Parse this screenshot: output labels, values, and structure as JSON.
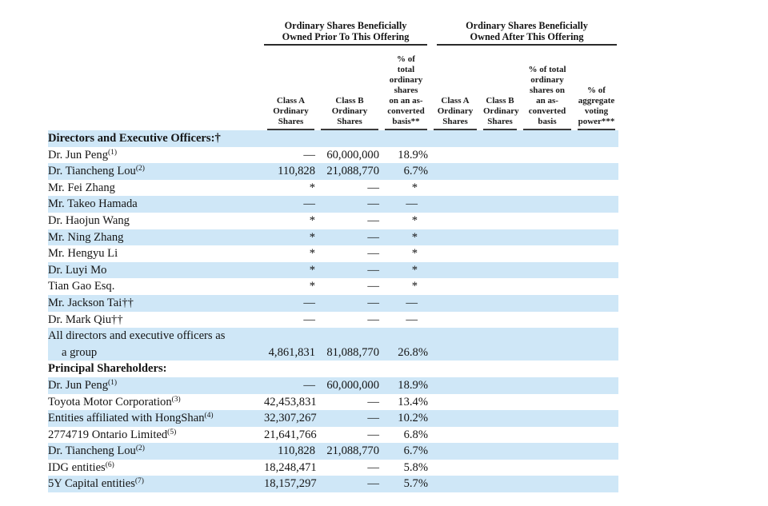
{
  "colors": {
    "stripe": "#cfe7f7",
    "rule_dark": "#2b2b2b",
    "rule_sub": "#3a3a3a",
    "text": "#141414"
  },
  "table": {
    "group_headers": [
      {
        "text": "Ordinary Shares Beneficially\nOwned Prior To This Offering"
      },
      {
        "text": "Ordinary Shares Beneficially\nOwned After This Offering"
      }
    ],
    "column_headers": [
      "Class A\nOrdinary\nShares",
      "Class B\nOrdinary\nShares",
      "% of\ntotal\nordinary\nshares\non an as-\nconverted\nbasis**",
      "Class A\nOrdinary\nShares",
      "Class B\nOrdinary\nShares",
      "% of total\nordinary\nshares on\nan as-\nconverted\nbasis",
      "% of\naggregate\nvoting\npower***"
    ],
    "rows": [
      {
        "type": "section",
        "label": "Directors and Executive Officers:†",
        "striped": true
      },
      {
        "type": "data",
        "label": "Dr. Jun Peng",
        "sup": "(1)",
        "cells": [
          "—",
          "60,000,000",
          "18.9%",
          "",
          "",
          "",
          ""
        ],
        "striped": false
      },
      {
        "type": "data",
        "label": "Dr. Tiancheng Lou",
        "sup": "(2)",
        "cells": [
          "110,828",
          "21,088,770",
          "6.7%",
          "",
          "",
          "",
          ""
        ],
        "striped": true
      },
      {
        "type": "data",
        "label": "Mr. Fei Zhang",
        "sup": "",
        "cells": [
          "*",
          "—",
          "*",
          "",
          "",
          "",
          ""
        ],
        "striped": false
      },
      {
        "type": "data",
        "label": "Mr. Takeo Hamada",
        "sup": "",
        "cells": [
          "—",
          "—",
          "—",
          "",
          "",
          "",
          ""
        ],
        "striped": true
      },
      {
        "type": "data",
        "label": "Dr. Haojun Wang",
        "sup": "",
        "cells": [
          "*",
          "—",
          "*",
          "",
          "",
          "",
          ""
        ],
        "striped": false
      },
      {
        "type": "data",
        "label": "Mr. Ning Zhang",
        "sup": "",
        "cells": [
          "*",
          "—",
          "*",
          "",
          "",
          "",
          ""
        ],
        "striped": true
      },
      {
        "type": "data",
        "label": "Mr. Hengyu Li",
        "sup": "",
        "cells": [
          "*",
          "—",
          "*",
          "",
          "",
          "",
          ""
        ],
        "striped": false
      },
      {
        "type": "data",
        "label": "Dr. Luyi Mo",
        "sup": "",
        "cells": [
          "*",
          "—",
          "*",
          "",
          "",
          "",
          ""
        ],
        "striped": true
      },
      {
        "type": "data",
        "label": "Tian Gao Esq.",
        "sup": "",
        "cells": [
          "*",
          "—",
          "*",
          "",
          "",
          "",
          ""
        ],
        "striped": false
      },
      {
        "type": "data",
        "label": "Mr. Jackson Tai††",
        "sup": "",
        "cells": [
          "—",
          "—",
          "—",
          "",
          "",
          "",
          ""
        ],
        "striped": true
      },
      {
        "type": "data",
        "label": "Dr. Mark Qiu††",
        "sup": "",
        "cells": [
          "—",
          "—",
          "—",
          "",
          "",
          "",
          ""
        ],
        "striped": false
      },
      {
        "type": "data",
        "label": "All directors and executive officers as\na group",
        "sup": "",
        "cells": [
          "4,861,831",
          "81,088,770",
          "26.8%",
          "",
          "",
          "",
          ""
        ],
        "striped": true
      },
      {
        "type": "section",
        "label": "Principal Shareholders:",
        "striped": false
      },
      {
        "type": "data",
        "label": "Dr. Jun Peng",
        "sup": "(1)",
        "cells": [
          "—",
          "60,000,000",
          "18.9%",
          "",
          "",
          "",
          ""
        ],
        "striped": true
      },
      {
        "type": "data",
        "label": "Toyota Motor Corporation",
        "sup": "(3)",
        "cells": [
          "42,453,831",
          "—",
          "13.4%",
          "",
          "",
          "",
          ""
        ],
        "striped": false
      },
      {
        "type": "data",
        "label": "Entities affiliated with HongShan",
        "sup": "(4)",
        "cells": [
          "32,307,267",
          "—",
          "10.2%",
          "",
          "",
          "",
          ""
        ],
        "striped": true
      },
      {
        "type": "data",
        "label": "2774719 Ontario Limited",
        "sup": "(5)",
        "cells": [
          "21,641,766",
          "—",
          "6.8%",
          "",
          "",
          "",
          ""
        ],
        "striped": false
      },
      {
        "type": "data",
        "label": "Dr. Tiancheng Lou",
        "sup": "(2)",
        "cells": [
          "110,828",
          "21,088,770",
          "6.7%",
          "",
          "",
          "",
          ""
        ],
        "striped": true
      },
      {
        "type": "data",
        "label": "IDG entities",
        "sup": "(6)",
        "cells": [
          "18,248,471",
          "—",
          "5.8%",
          "",
          "",
          "",
          ""
        ],
        "striped": false
      },
      {
        "type": "data",
        "label": "5Y Capital entities",
        "sup": "(7)",
        "cells": [
          "18,157,297",
          "—",
          "5.7%",
          "",
          "",
          "",
          ""
        ],
        "striped": true
      }
    ]
  }
}
